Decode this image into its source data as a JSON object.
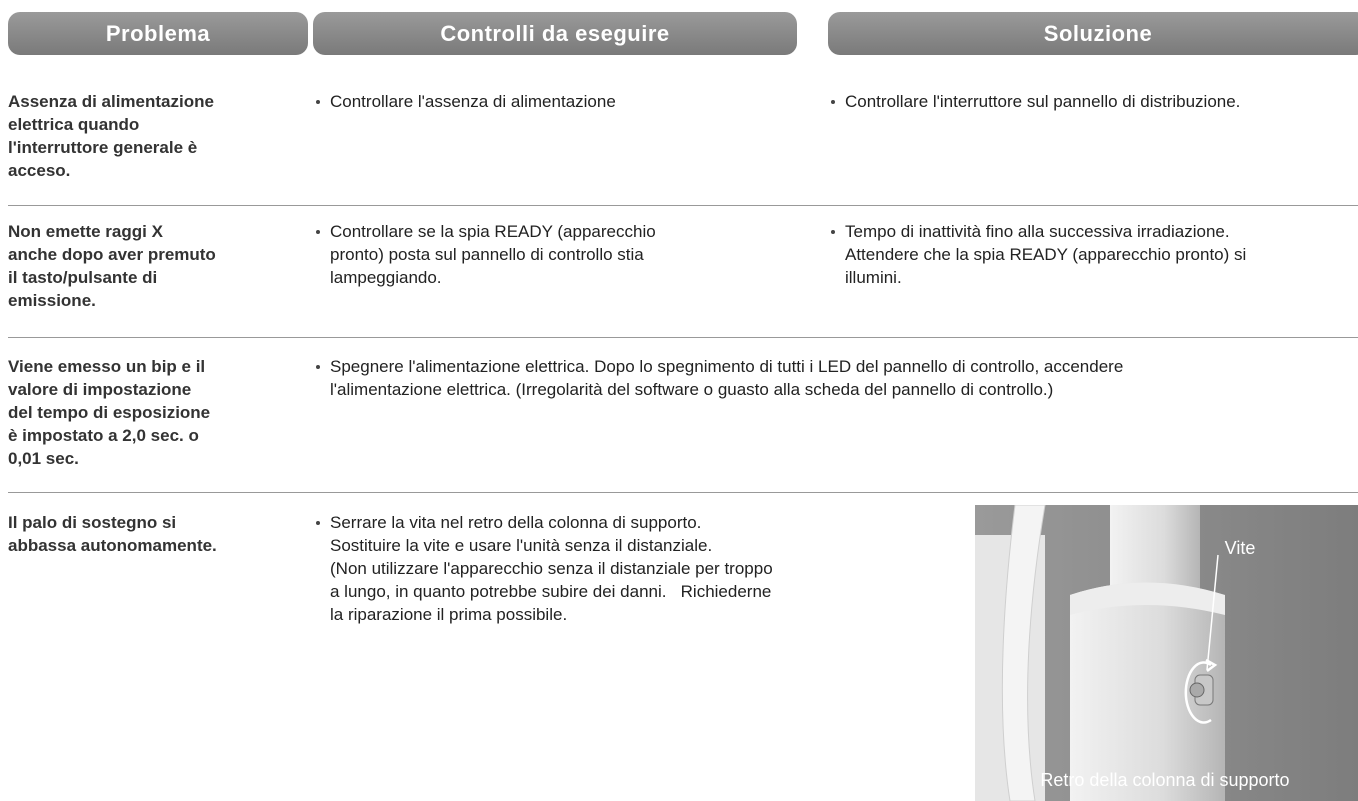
{
  "header": {
    "columns": [
      "Problema",
      "Controlli da eseguire",
      "Soluzione"
    ]
  },
  "table": {
    "rows": [
      {
        "problem": [
          "Assenza di alimentazione",
          "elettrica quando",
          "l'interruttore generale è",
          "acceso."
        ],
        "checks": [
          "Controllare l'assenza di alimentazione"
        ],
        "solution": [
          "Controllare l'interruttore sul pannello di distribuzione."
        ]
      },
      {
        "problem": [
          "Non emette raggi X",
          "anche dopo aver premuto",
          "il tasto/pulsante di",
          "emissione."
        ],
        "checks": [
          "Controllare se la spia READY (apparecchio",
          "pronto) posta sul pannello di controllo stia",
          "lampeggiando."
        ],
        "solution": [
          "Tempo di inattività fino alla successiva irradiazione.",
          "Attendere che la spia READY (apparecchio pronto) si",
          "illumini."
        ]
      },
      {
        "problem": [
          "Viene emesso un bip e il",
          "valore di impostazione",
          "del tempo di esposizione",
          "è impostato a 2,0 sec. o",
          "0,01 sec."
        ],
        "merged": [
          "Spegnere l'alimentazione elettrica. Dopo lo spegnimento di tutti i LED del pannello di controllo, accendere",
          "l'alimentazione elettrica. (Irregolarità del software o guasto alla scheda del pannello di controllo.)"
        ]
      },
      {
        "problem": [
          "Il palo di sostegno si",
          "abbassa autonomamente."
        ],
        "checks": [
          "Serrare la vita nel retro della colonna di supporto.",
          "Sostituire la vite e usare l'unità senza il distanziale.",
          "(Non utilizzare l'apparecchio senza il distanziale per troppo",
          "a lungo, in quanto potrebbe subire dei danni.   Richiederne",
          "la riparazione il prima possibile."
        ],
        "figure": {
          "label": "Vite",
          "caption": "Retro della colonna di supporto"
        }
      }
    ]
  }
}
